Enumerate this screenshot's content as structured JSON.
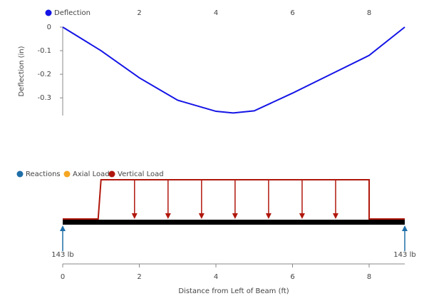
{
  "chart_data": [
    {
      "type": "line",
      "y_label": "Deflection (in)",
      "x": [
        0,
        1,
        2,
        3,
        4,
        4.45,
        5,
        6,
        7,
        8,
        8.93
      ],
      "series": [
        {
          "name": "Deflection",
          "color": "#1414e6",
          "values": [
            0,
            -0.1,
            -0.215,
            -0.31,
            -0.357,
            -0.364,
            -0.355,
            -0.28,
            -0.2,
            -0.12,
            0
          ]
        }
      ],
      "xlim": [
        0,
        8.93
      ],
      "xticks": [
        2,
        4,
        6,
        8
      ],
      "ylim": [
        -0.375,
        0
      ],
      "yticks": [
        0,
        -0.1,
        -0.2,
        -0.3
      ]
    },
    {
      "type": "beam",
      "x_label": "Distance from Left of Beam (ft)",
      "xlim": [
        0,
        8.93
      ],
      "xticks": [
        0,
        2,
        4,
        6,
        8
      ],
      "series": [
        {
          "name": "Reactions",
          "color": "#1f6ea8",
          "x": [
            0,
            8.93
          ],
          "values": [
            143,
            143
          ],
          "value_labels": [
            "143 lb",
            "143 lb"
          ]
        },
        {
          "name": "Axial Load",
          "color": "#f5a623"
        },
        {
          "name": "Vertical Load",
          "color": "#b0170c",
          "start": 1,
          "end": 8
        }
      ]
    }
  ]
}
